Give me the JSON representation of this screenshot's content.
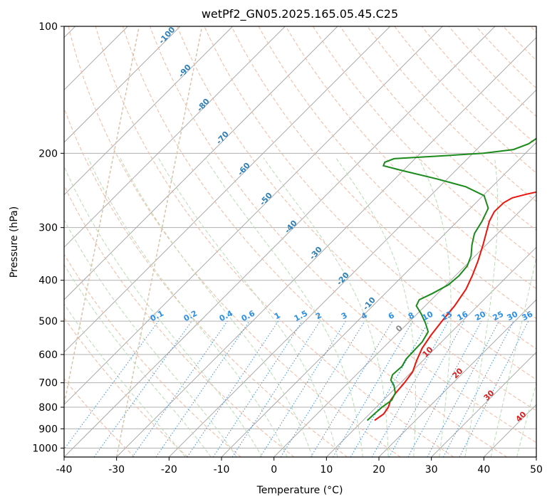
{
  "chart_data": {
    "type": "line",
    "title": "wetPf2_GN05.2025.165.05.45.C25",
    "xlabel": "Temperature (°C)",
    "ylabel": "Pressure (hPa)",
    "xlim": [
      -40,
      50
    ],
    "ylim": [
      1050,
      100
    ],
    "y_scale": "log",
    "grid": true,
    "x_ticks": [
      -40,
      -30,
      -20,
      -10,
      0,
      10,
      20,
      30,
      40,
      50
    ],
    "y_ticks": [
      100,
      200,
      300,
      400,
      500,
      600,
      700,
      800,
      900,
      1000
    ],
    "series": [
      {
        "role": "temperature",
        "color": "#e8160f",
        "points": [
          {
            "p": 860,
            "t": 12.2
          },
          {
            "p": 830,
            "t": 12.7
          },
          {
            "p": 800,
            "t": 12.3
          },
          {
            "p": 770,
            "t": 11.4
          },
          {
            "p": 740,
            "t": 11.0
          },
          {
            "p": 700,
            "t": 10.7
          },
          {
            "p": 660,
            "t": 10.2
          },
          {
            "p": 620,
            "t": 8.8
          },
          {
            "p": 580,
            "t": 7.5
          },
          {
            "p": 540,
            "t": 6.7
          },
          {
            "p": 500,
            "t": 6.1
          },
          {
            "p": 460,
            "t": 5.6
          },
          {
            "p": 420,
            "t": 4.6
          },
          {
            "p": 390,
            "t": 3.2
          },
          {
            "p": 360,
            "t": 1.5
          },
          {
            "p": 330,
            "t": -0.6
          },
          {
            "p": 310,
            "t": -2.2
          },
          {
            "p": 290,
            "t": -3.9
          },
          {
            "p": 275,
            "t": -4.8
          },
          {
            "p": 262,
            "t": -4.7
          },
          {
            "p": 255,
            "t": -4.0
          },
          {
            "p": 250,
            "t": -2.0
          },
          {
            "p": 245,
            "t": 0.5
          },
          {
            "p": 238,
            "t": 3.8
          },
          {
            "p": 228,
            "t": 7.2
          },
          {
            "p": 215,
            "t": 9.9
          },
          {
            "p": 200,
            "t": 12.0
          },
          {
            "p": 185,
            "t": 13.8
          },
          {
            "p": 170,
            "t": 16.0
          },
          {
            "p": 155,
            "t": 18.5
          },
          {
            "p": 140,
            "t": 21.2
          },
          {
            "p": 128,
            "t": 23.8
          },
          {
            "p": 117,
            "t": 25.8
          },
          {
            "p": 108,
            "t": 27.9
          },
          {
            "p": 100,
            "t": 29.5
          }
        ]
      },
      {
        "role": "dewpoint",
        "color": "#1a8a1a",
        "points": [
          {
            "p": 860,
            "t": 10.8
          },
          {
            "p": 830,
            "t": 10.9
          },
          {
            "p": 800,
            "t": 11.1
          },
          {
            "p": 770,
            "t": 11.6
          },
          {
            "p": 740,
            "t": 10.9
          },
          {
            "p": 710,
            "t": 9.2
          },
          {
            "p": 690,
            "t": 7.6
          },
          {
            "p": 670,
            "t": 6.9
          },
          {
            "p": 640,
            "t": 7.1
          },
          {
            "p": 615,
            "t": 6.5
          },
          {
            "p": 590,
            "t": 6.4
          },
          {
            "p": 560,
            "t": 6.3
          },
          {
            "p": 530,
            "t": 5.5
          },
          {
            "p": 505,
            "t": 3.3
          },
          {
            "p": 480,
            "t": 0.7
          },
          {
            "p": 460,
            "t": -1.7
          },
          {
            "p": 445,
            "t": -2.3
          },
          {
            "p": 430,
            "t": -1.0
          },
          {
            "p": 410,
            "t": 0.4
          },
          {
            "p": 390,
            "t": 0.7
          },
          {
            "p": 370,
            "t": 0.4
          },
          {
            "p": 350,
            "t": -0.8
          },
          {
            "p": 330,
            "t": -2.7
          },
          {
            "p": 310,
            "t": -4.4
          },
          {
            "p": 290,
            "t": -5.3
          },
          {
            "p": 270,
            "t": -6.6
          },
          {
            "p": 252,
            "t": -9.8
          },
          {
            "p": 240,
            "t": -15.0
          },
          {
            "p": 230,
            "t": -22.0
          },
          {
            "p": 220,
            "t": -30.0
          },
          {
            "p": 214,
            "t": -34.7
          },
          {
            "p": 210,
            "t": -35.1
          },
          {
            "p": 206,
            "t": -34.0
          },
          {
            "p": 203,
            "t": -26.0
          },
          {
            "p": 200,
            "t": -18.0
          },
          {
            "p": 196,
            "t": -13.0
          },
          {
            "p": 190,
            "t": -11.2
          },
          {
            "p": 183,
            "t": -10.6
          },
          {
            "p": 175,
            "t": -10.8
          },
          {
            "p": 165,
            "t": -10.9
          },
          {
            "p": 155,
            "t": -10.3
          },
          {
            "p": 145,
            "t": -10.0
          },
          {
            "p": 135,
            "t": -9.6
          },
          {
            "p": 125,
            "t": -8.2
          },
          {
            "p": 115,
            "t": -5.5
          },
          {
            "p": 108,
            "t": -2.7
          },
          {
            "p": 100,
            "t": -0.2
          }
        ]
      }
    ],
    "dry_adiabat_labels": [
      "-100",
      "-90",
      "-80",
      "-70",
      "-60",
      "-50",
      "-40",
      "-30",
      "-20",
      "-10"
    ],
    "dry_adiabat_label_color": "#2e7fb8",
    "mixing_ratio_labels": [
      "0.1",
      "0.2",
      "0.4",
      "0.6",
      "1",
      "1.5",
      "2",
      "3",
      "4",
      "6",
      "8",
      "10",
      "13",
      "16",
      "20",
      "25",
      "30",
      "36"
    ],
    "mixing_ratio_label_color": "#2b8fe8",
    "moist_adiabat_labels": [
      "0",
      "10",
      "20",
      "30",
      "40"
    ],
    "moist_adiabat_label_colors": [
      "#888888",
      "#d42020",
      "#d42020",
      "#d42020",
      "#d42020"
    ],
    "isotherm_color": "#a9a9a9",
    "dry_adiabat_color": "#f4b8a0",
    "moist_adiabat_color": "#b9dbb4",
    "mixing_ratio_color": "#3f8fe0",
    "lcl_curve_color": "#d7c3a8"
  }
}
